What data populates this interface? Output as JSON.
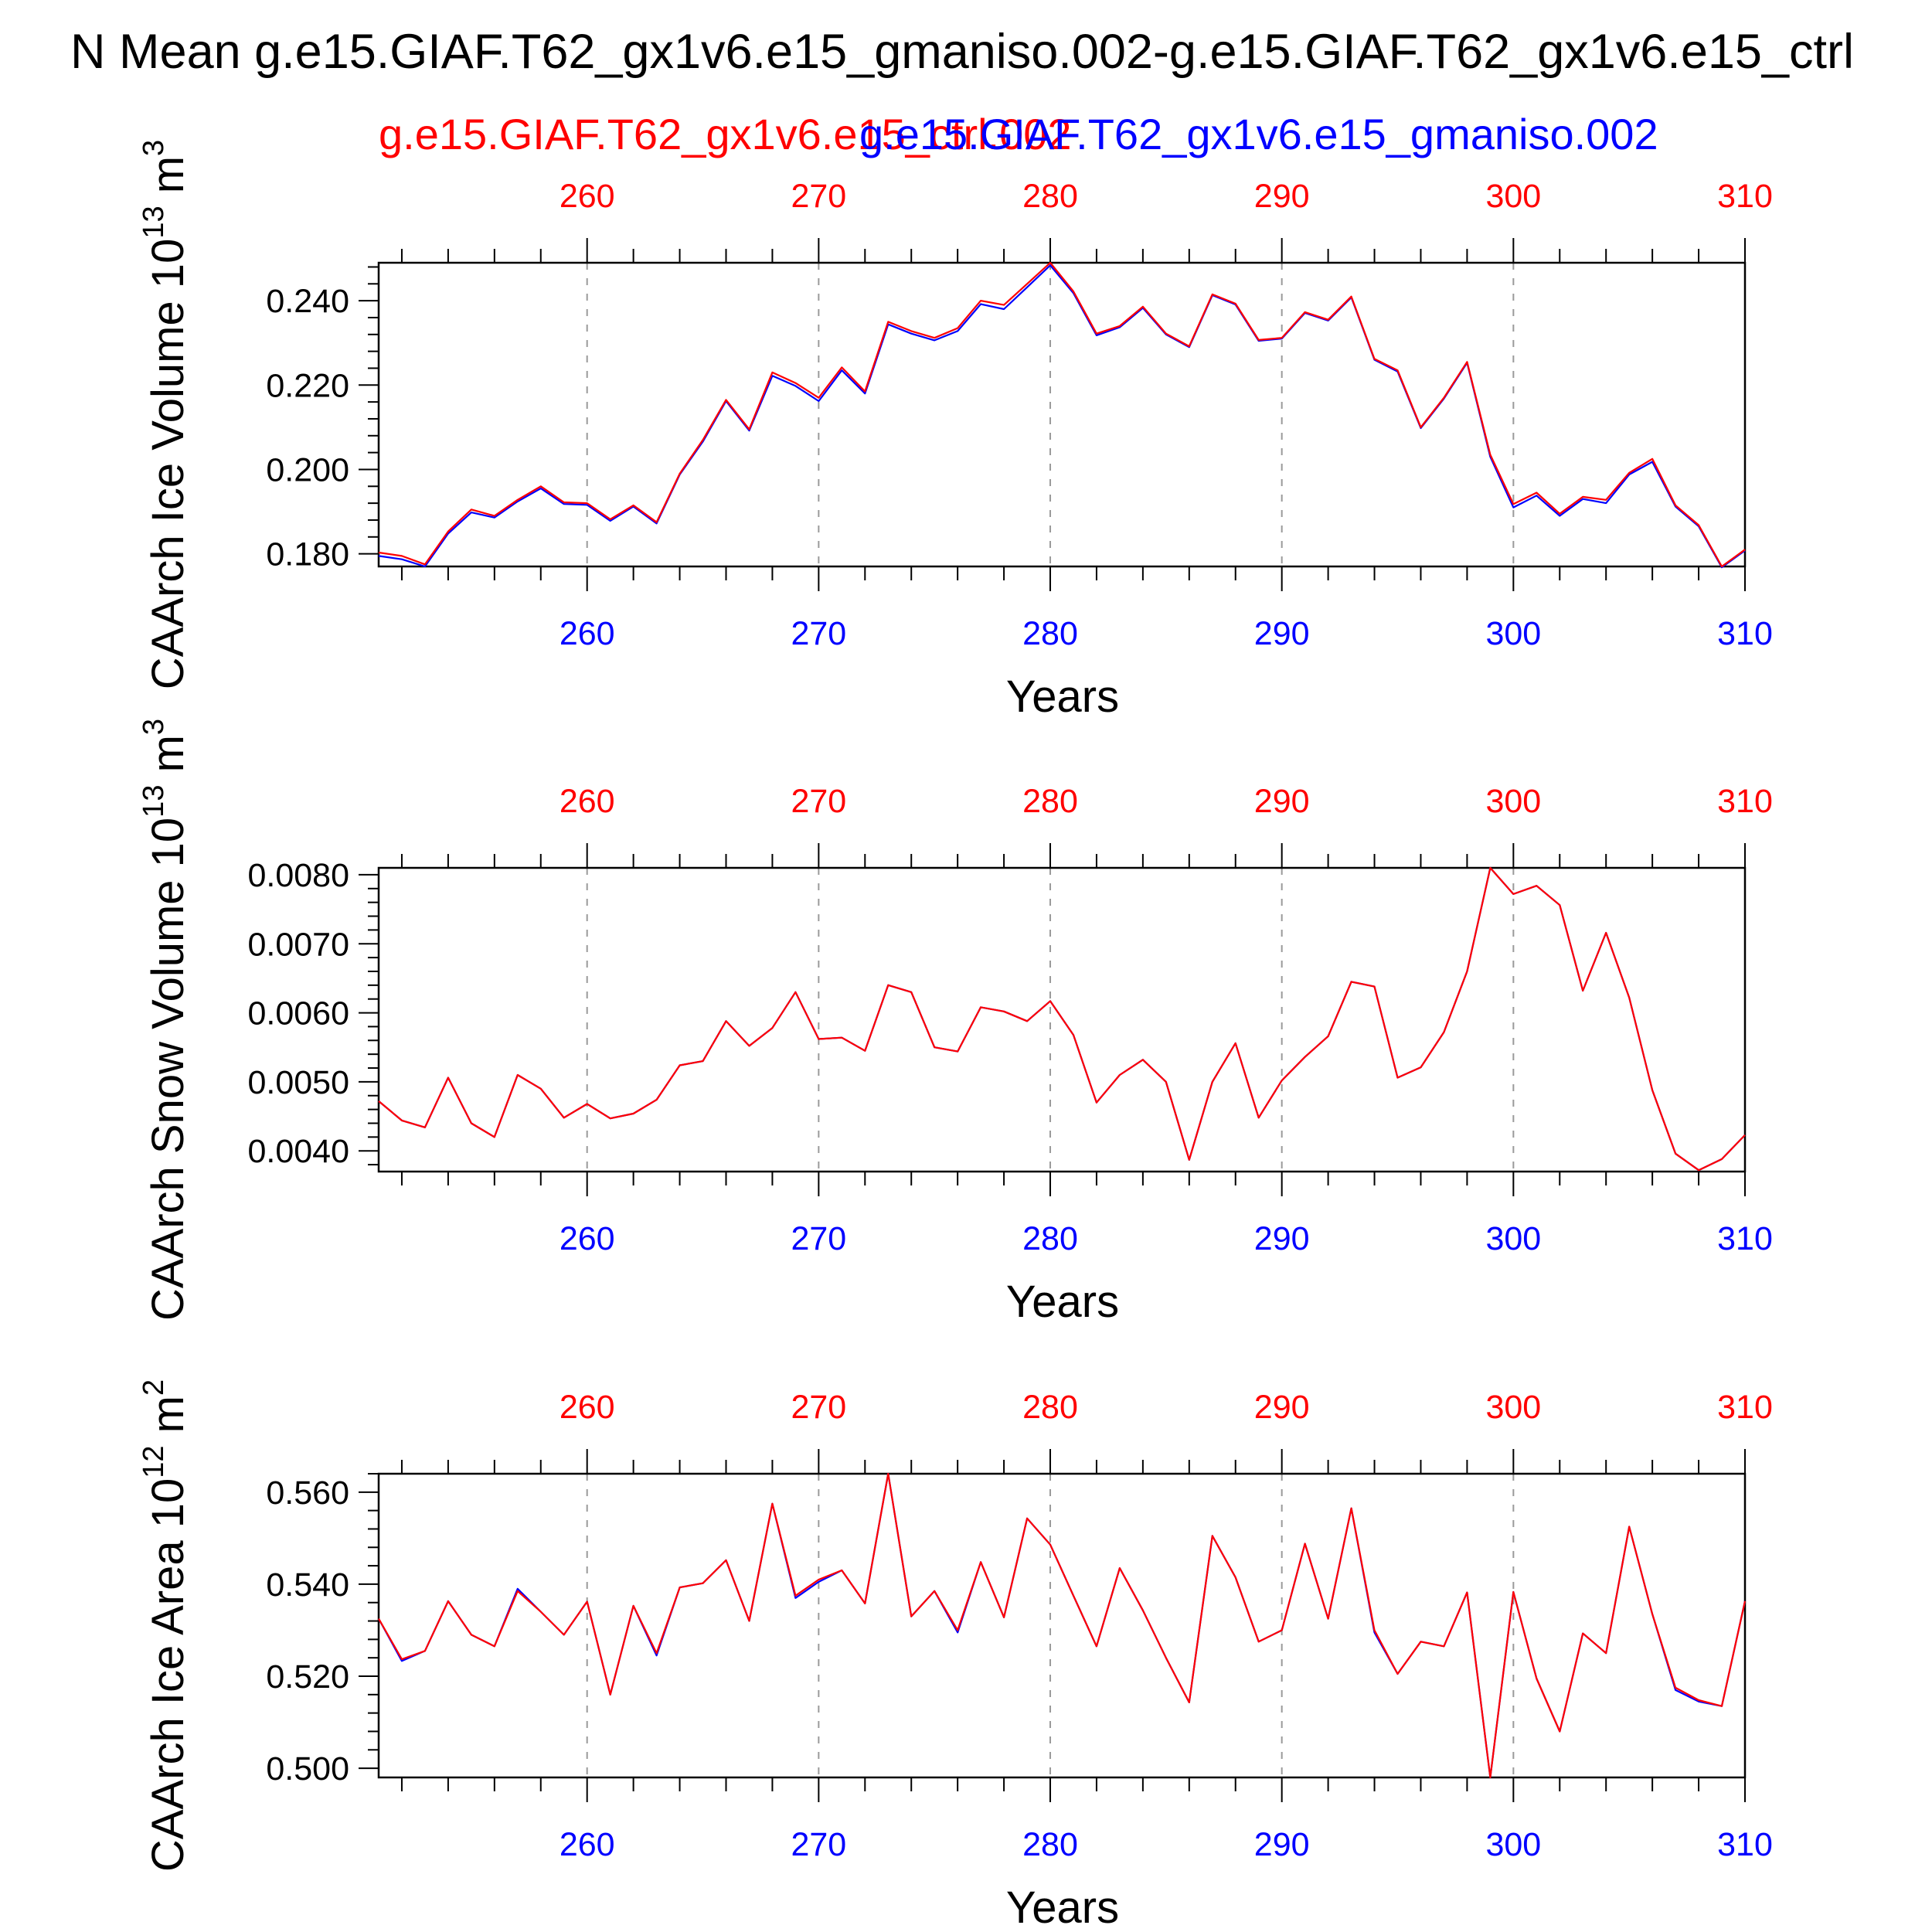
{
  "header": {
    "title": "N Mean g.e15.GIAF.T62_gx1v6.e15_gmaniso.002-g.e15.GIAF.T62_gx1v6.e15_ctrl",
    "legend_red": "g.e15.GIAF.T62_gx1v6.e15_ctrl.002",
    "legend_blue": "g.e15.GIAF.T62_gx1v6.e15_gmaniso.002"
  },
  "colors": {
    "red": "#ff0000",
    "blue": "#0000ff",
    "axis": "#000000",
    "grid": "#9a9a9a"
  },
  "chart_data": [
    {
      "type": "line",
      "ylabel_main": "CAArch Ice Volume 10",
      "ylabel_exp": "13",
      "ylabel_unit": "m",
      "ylabel_unit_exp": "3",
      "xlabel": "Years",
      "xlim": [
        251,
        310
      ],
      "ylim": [
        0.177,
        0.249
      ],
      "xticks": [
        260,
        270,
        280,
        290,
        300,
        310
      ],
      "yticks": [
        0.18,
        0.2,
        0.22,
        0.24
      ],
      "ytick_labels": [
        "0.180",
        "0.200",
        "0.220",
        "0.240"
      ],
      "grid": "vertical dashed at major x ticks",
      "x": [
        251,
        252,
        253,
        254,
        255,
        256,
        257,
        258,
        259,
        260,
        261,
        262,
        263,
        264,
        265,
        266,
        267,
        268,
        269,
        270,
        271,
        272,
        273,
        274,
        275,
        276,
        277,
        278,
        279,
        280,
        281,
        282,
        283,
        284,
        285,
        286,
        287,
        288,
        289,
        290,
        291,
        292,
        293,
        294,
        295,
        296,
        297,
        298,
        299,
        300,
        301,
        302,
        303,
        304,
        305,
        306,
        307,
        308,
        309,
        310
      ],
      "series": [
        {
          "name": "g.e15.GIAF.T62_gx1v6.e15_ctrl.002",
          "color": "#ff0000",
          "values": [
            0.1803,
            0.1795,
            0.1775,
            0.1853,
            0.1905,
            0.189,
            0.1928,
            0.196,
            0.1922,
            0.192,
            0.1882,
            0.1915,
            0.1875,
            0.199,
            0.207,
            0.2165,
            0.2095,
            0.223,
            0.2205,
            0.217,
            0.2242,
            0.2185,
            0.235,
            0.2328,
            0.2312,
            0.2335,
            0.24,
            0.239,
            0.244,
            0.249,
            0.2422,
            0.2322,
            0.234,
            0.2386,
            0.2322,
            0.2292,
            0.2415,
            0.2393,
            0.2307,
            0.2312,
            0.2373,
            0.2355,
            0.241,
            0.2262,
            0.2235,
            0.21,
            0.217,
            0.2255,
            0.2035,
            0.1918,
            0.1945,
            0.1895,
            0.1935,
            0.1928,
            0.1992,
            0.2025,
            0.1915,
            0.1868,
            0.177,
            0.181
          ]
        },
        {
          "name": "g.e15.GIAF.T62_gx1v6.e15_gmaniso.002",
          "color": "#0000ff",
          "values": [
            0.1795,
            0.1787,
            0.177,
            0.1848,
            0.1898,
            0.1886,
            0.1924,
            0.1955,
            0.1918,
            0.1916,
            0.1878,
            0.1912,
            0.1872,
            0.1988,
            0.2066,
            0.2162,
            0.2092,
            0.2222,
            0.2198,
            0.2162,
            0.2235,
            0.218,
            0.2344,
            0.2322,
            0.2306,
            0.2328,
            0.2392,
            0.238,
            0.2432,
            0.2484,
            0.2418,
            0.2318,
            0.2337,
            0.2383,
            0.232,
            0.229,
            0.2413,
            0.2391,
            0.2305,
            0.231,
            0.2371,
            0.2353,
            0.2408,
            0.226,
            0.2232,
            0.2098,
            0.2168,
            0.2253,
            0.203,
            0.191,
            0.1938,
            0.189,
            0.193,
            0.192,
            0.1988,
            0.2018,
            0.1912,
            0.1865,
            0.1768,
            0.1808
          ]
        }
      ]
    },
    {
      "type": "line",
      "ylabel_main": "CAArch Snow Volume 10",
      "ylabel_exp": "13",
      "ylabel_unit": "m",
      "ylabel_unit_exp": "3",
      "xlabel": "Years",
      "xlim": [
        251,
        310
      ],
      "ylim": [
        0.0037,
        0.0081
      ],
      "xticks": [
        260,
        270,
        280,
        290,
        300,
        310
      ],
      "yticks": [
        0.004,
        0.005,
        0.006,
        0.007,
        0.008
      ],
      "ytick_labels": [
        "0.0040",
        "0.0050",
        "0.0060",
        "0.0070",
        "0.0080"
      ],
      "grid": "vertical dashed at major x ticks",
      "x": [
        251,
        252,
        253,
        254,
        255,
        256,
        257,
        258,
        259,
        260,
        261,
        262,
        263,
        264,
        265,
        266,
        267,
        268,
        269,
        270,
        271,
        272,
        273,
        274,
        275,
        276,
        277,
        278,
        279,
        280,
        281,
        282,
        283,
        284,
        285,
        286,
        287,
        288,
        289,
        290,
        291,
        292,
        293,
        294,
        295,
        296,
        297,
        298,
        299,
        300,
        301,
        302,
        303,
        304,
        305,
        306,
        307,
        308,
        309,
        310
      ],
      "series": [
        {
          "name": "g.e15.GIAF.T62_gx1v6.e15_ctrl.002",
          "color": "#ff0000",
          "values": [
            0.00472,
            0.00444,
            0.00434,
            0.00506,
            0.0044,
            0.0042,
            0.0051,
            0.0049,
            0.00448,
            0.00468,
            0.00447,
            0.00454,
            0.00474,
            0.00524,
            0.0053,
            0.00588,
            0.00552,
            0.00578,
            0.0063,
            0.00562,
            0.00564,
            0.00545,
            0.0064,
            0.0063,
            0.0055,
            0.00544,
            0.00608,
            0.00602,
            0.00588,
            0.00617,
            0.00568,
            0.0047,
            0.0051,
            0.00532,
            0.005,
            0.00387,
            0.005,
            0.00556,
            0.00448,
            0.00502,
            0.00536,
            0.00566,
            0.00645,
            0.00638,
            0.00506,
            0.00521,
            0.00572,
            0.0066,
            0.0081,
            0.00772,
            0.00784,
            0.00756,
            0.00632,
            0.00716,
            0.00622,
            0.00488,
            0.00396,
            0.00372,
            0.00388,
            0.00423
          ]
        },
        {
          "name": "g.e15.GIAF.T62_gx1v6.e15_gmaniso.002",
          "color": "#0000ff",
          "values": [
            0.00472,
            0.00444,
            0.00434,
            0.00506,
            0.0044,
            0.0042,
            0.0051,
            0.0049,
            0.00448,
            0.00468,
            0.00447,
            0.00454,
            0.00474,
            0.00524,
            0.0053,
            0.00588,
            0.00552,
            0.00578,
            0.0063,
            0.00562,
            0.00564,
            0.00545,
            0.0064,
            0.0063,
            0.0055,
            0.00544,
            0.00608,
            0.00602,
            0.00588,
            0.00617,
            0.00568,
            0.0047,
            0.0051,
            0.00532,
            0.005,
            0.00387,
            0.005,
            0.00556,
            0.00448,
            0.00502,
            0.00536,
            0.00566,
            0.00645,
            0.00638,
            0.00506,
            0.00521,
            0.00572,
            0.0066,
            0.0081,
            0.00772,
            0.00784,
            0.00756,
            0.00632,
            0.00716,
            0.00622,
            0.00488,
            0.00396,
            0.00372,
            0.00388,
            0.00423
          ]
        }
      ]
    },
    {
      "type": "line",
      "ylabel_main": "CAArch Ice Area 10",
      "ylabel_exp": "12",
      "ylabel_unit": "m",
      "ylabel_unit_exp": "2",
      "xlabel": "Years",
      "xlim": [
        251,
        310
      ],
      "ylim": [
        0.498,
        0.564
      ],
      "xticks": [
        260,
        270,
        280,
        290,
        300,
        310
      ],
      "yticks": [
        0.5,
        0.52,
        0.54,
        0.56
      ],
      "ytick_labels": [
        "0.500",
        "0.520",
        "0.540",
        "0.560"
      ],
      "grid": "vertical dashed at major x ticks",
      "x": [
        251,
        252,
        253,
        254,
        255,
        256,
        257,
        258,
        259,
        260,
        261,
        262,
        263,
        264,
        265,
        266,
        267,
        268,
        269,
        270,
        271,
        272,
        273,
        274,
        275,
        276,
        277,
        278,
        279,
        280,
        281,
        282,
        283,
        284,
        285,
        286,
        287,
        288,
        289,
        290,
        291,
        292,
        293,
        294,
        295,
        296,
        297,
        298,
        299,
        300,
        301,
        302,
        303,
        304,
        305,
        306,
        307,
        308,
        309,
        310
      ],
      "series": [
        {
          "name": "g.e15.GIAF.T62_gx1v6.e15_ctrl.002",
          "color": "#ff0000",
          "values": [
            0.5325,
            0.5237,
            0.5255,
            0.5363,
            0.529,
            0.5265,
            0.5385,
            0.534,
            0.529,
            0.5362,
            0.516,
            0.5353,
            0.525,
            0.5393,
            0.5402,
            0.5452,
            0.532,
            0.5575,
            0.5375,
            0.541,
            0.543,
            0.5358,
            0.564,
            0.533,
            0.5385,
            0.53,
            0.5448,
            0.5328,
            0.5543,
            0.5486,
            0.5375,
            0.5265,
            0.5435,
            0.5343,
            0.524,
            0.5143,
            0.5505,
            0.5415,
            0.5275,
            0.53,
            0.5488,
            0.5325,
            0.5565,
            0.53,
            0.5205,
            0.5275,
            0.5265,
            0.5382,
            0.498,
            0.5383,
            0.5195,
            0.508,
            0.5293,
            0.525,
            0.5525,
            0.5335,
            0.5175,
            0.5148,
            0.5135,
            0.5363
          ]
        },
        {
          "name": "g.e15.GIAF.T62_gx1v6.e15_gmaniso.002",
          "color": "#0000ff",
          "values": [
            0.5325,
            0.5233,
            0.5255,
            0.5363,
            0.529,
            0.5265,
            0.539,
            0.534,
            0.529,
            0.5362,
            0.516,
            0.5353,
            0.5245,
            0.5393,
            0.5402,
            0.5452,
            0.532,
            0.5575,
            0.537,
            0.5405,
            0.543,
            0.5358,
            0.564,
            0.533,
            0.5385,
            0.5295,
            0.5448,
            0.5328,
            0.5543,
            0.5486,
            0.5375,
            0.5265,
            0.5435,
            0.5343,
            0.524,
            0.5143,
            0.5505,
            0.5415,
            0.5275,
            0.53,
            0.5488,
            0.5325,
            0.5565,
            0.5295,
            0.5205,
            0.5275,
            0.5265,
            0.5382,
            0.498,
            0.5383,
            0.5195,
            0.508,
            0.5293,
            0.525,
            0.5525,
            0.5335,
            0.517,
            0.5145,
            0.5135,
            0.5363
          ]
        }
      ]
    }
  ]
}
